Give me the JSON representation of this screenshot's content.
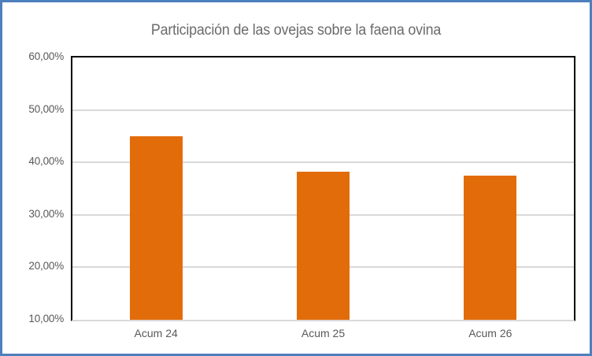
{
  "frame": {
    "border_color": "#4D80BD",
    "background": "#FFFFFF"
  },
  "chart_data": {
    "type": "bar",
    "title": "Participación de las ovejas sobre la faena ovina",
    "categories": [
      "Acum 24",
      "Acum 25",
      "Acum 26"
    ],
    "values": [
      45.0,
      38.3,
      37.5
    ],
    "value_unit": "%",
    "xlabel": "",
    "ylabel": "",
    "ylim": [
      10,
      60
    ],
    "ytick_step": 10,
    "ytick_labels": [
      "60,00%",
      "50,00%",
      "40,00%",
      "30,00%",
      "20,00%",
      "10,00%"
    ],
    "grid": true,
    "legend": false,
    "colors": {
      "bar": "#E36C0A",
      "gridline": "#D9D9D9",
      "plot_border": "#000000",
      "axis_line": "#D9D9D9",
      "axis_text": "#595959",
      "title_text": "#6B6B6B"
    }
  }
}
